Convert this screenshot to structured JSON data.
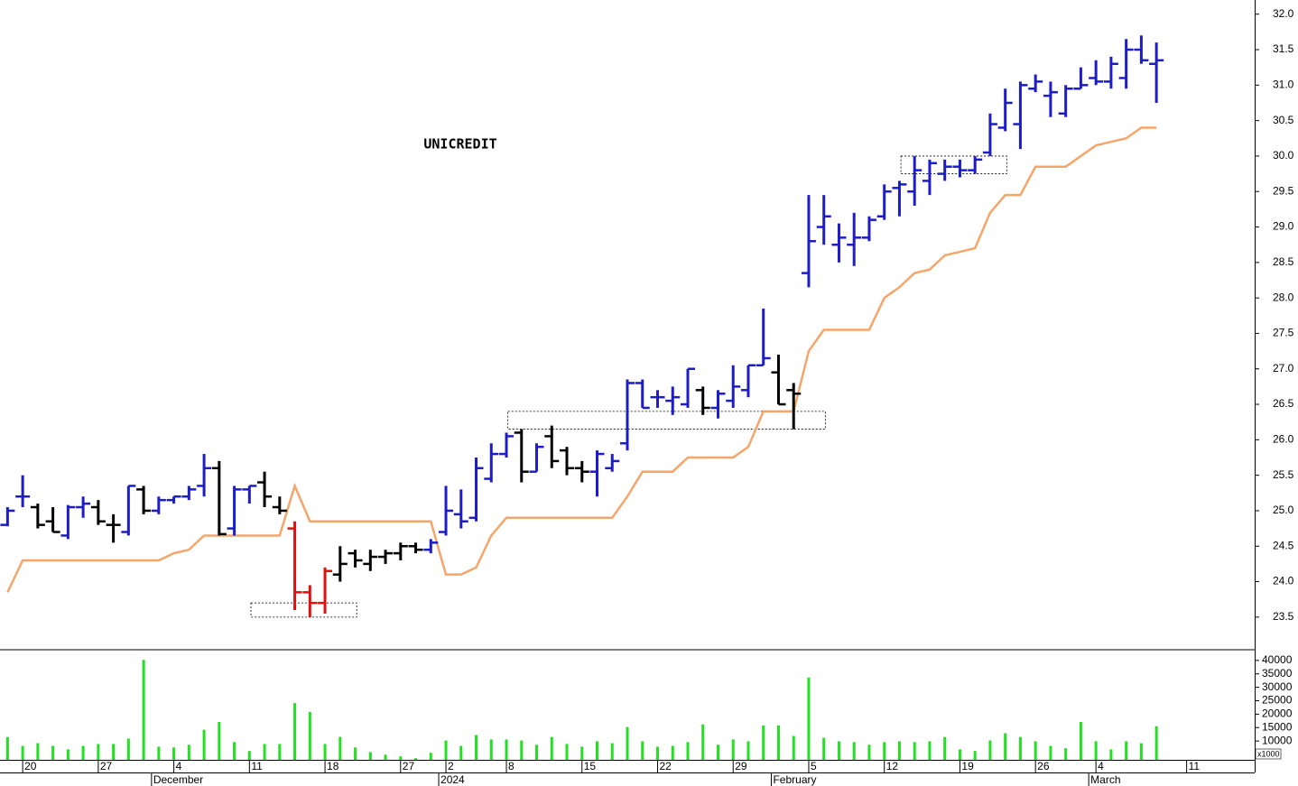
{
  "chart_data": [
    {
      "type": "ohlc",
      "title": "UNICREDIT",
      "xlim": [
        -0.5,
        82.5
      ],
      "ylim": [
        23.04,
        32.2
      ],
      "yticks": [
        23.5,
        {
          "value": 24,
          "label": "24.0"
        },
        24.5,
        {
          "value": 25,
          "label": "25.0"
        },
        25.5,
        {
          "value": 26,
          "label": "26.0"
        },
        26.5,
        {
          "value": 27,
          "label": "27.0"
        },
        27.5,
        {
          "value": 28,
          "label": "28.0"
        },
        28.5,
        {
          "value": 29,
          "label": "29.0"
        },
        29.5,
        {
          "value": 30,
          "label": "30.0"
        },
        30.5,
        {
          "value": 31,
          "label": "31.0"
        },
        31.5,
        {
          "value": 32,
          "label": "32.0"
        }
      ],
      "open": [
        24.8,
        25.2,
        25.05,
        24.85,
        24.65,
        25.05,
        25.05,
        24.8,
        24.7,
        25.3,
        25.0,
        25.15,
        25.2,
        25.35,
        25.6,
        24.75,
        25.3,
        25.4,
        25.05,
        24.75,
        23.85,
        23.7,
        24.1,
        24.4,
        24.25,
        24.35,
        24.4,
        24.5,
        24.45,
        24.7,
        24.95,
        24.9,
        25.45,
        25.8,
        26.1,
        25.55,
        26.05,
        25.85,
        25.6,
        25.55,
        25.6,
        25.95,
        26.8,
        26.6,
        26.55,
        26.5,
        26.7,
        26.45,
        26.55,
        26.7,
        27.05,
        26.95,
        26.7,
        28.35,
        29.0,
        28.75,
        28.75,
        28.85,
        29.15,
        29.55,
        29.5,
        29.65,
        29.75,
        29.85,
        29.8,
        30.05,
        30.4,
        30.45,
        30.95,
        30.85,
        30.6,
        30.95,
        31.1,
        31.05,
        31.1,
        31.5,
        31.3
      ],
      "high": [
        25.05,
        25.5,
        25.1,
        25.05,
        25.08,
        25.2,
        25.15,
        24.95,
        25.35,
        25.35,
        25.2,
        25.2,
        25.35,
        25.8,
        25.7,
        25.35,
        25.35,
        25.55,
        25.2,
        24.85,
        23.95,
        24.2,
        24.5,
        24.45,
        24.45,
        24.45,
        24.55,
        24.55,
        24.6,
        25.35,
        25.3,
        25.75,
        25.95,
        26.1,
        26.15,
        25.95,
        26.2,
        25.9,
        25.7,
        25.85,
        25.8,
        26.85,
        26.85,
        26.7,
        26.75,
        27.0,
        26.75,
        26.7,
        27.05,
        27.05,
        27.85,
        27.2,
        26.8,
        29.45,
        29.45,
        29.05,
        29.2,
        29.15,
        29.6,
        29.65,
        30.0,
        29.95,
        29.95,
        29.95,
        30.0,
        30.6,
        30.95,
        31.05,
        31.15,
        31.05,
        31.0,
        31.25,
        31.35,
        31.4,
        31.65,
        31.7,
        31.6
      ],
      "low": [
        24.78,
        25.05,
        24.75,
        24.7,
        24.6,
        24.9,
        24.8,
        24.55,
        24.65,
        24.95,
        24.95,
        25.1,
        25.15,
        25.2,
        24.65,
        24.65,
        25.1,
        25.05,
        24.95,
        23.6,
        23.5,
        23.55,
        24.0,
        24.2,
        24.15,
        24.25,
        24.3,
        24.4,
        24.4,
        24.65,
        24.75,
        24.85,
        25.4,
        25.75,
        25.4,
        25.55,
        25.6,
        25.5,
        25.4,
        25.2,
        25.55,
        25.85,
        26.45,
        26.45,
        26.35,
        26.45,
        26.35,
        26.3,
        26.45,
        26.6,
        27.05,
        26.5,
        26.15,
        28.15,
        28.75,
        28.5,
        28.45,
        28.8,
        29.1,
        29.15,
        29.3,
        29.45,
        29.65,
        29.7,
        29.75,
        30.0,
        30.35,
        30.1,
        30.9,
        30.55,
        30.55,
        30.95,
        31.0,
        30.95,
        30.95,
        31.3,
        30.75
      ],
      "close": [
        25.0,
        25.2,
        24.8,
        24.7,
        25.05,
        25.1,
        24.85,
        24.8,
        25.35,
        25.0,
        25.15,
        25.2,
        25.3,
        25.6,
        24.67,
        25.3,
        25.35,
        25.2,
        25.0,
        23.85,
        23.7,
        24.15,
        24.25,
        24.3,
        24.35,
        24.4,
        24.5,
        24.45,
        24.55,
        25.0,
        24.85,
        25.6,
        25.8,
        26.05,
        25.55,
        25.9,
        25.7,
        25.6,
        25.55,
        25.8,
        25.7,
        26.8,
        26.45,
        26.6,
        26.6,
        27.0,
        26.45,
        26.65,
        26.75,
        27.05,
        27.15,
        26.5,
        26.65,
        28.8,
        29.15,
        28.85,
        28.85,
        29.1,
        29.5,
        29.6,
        29.8,
        29.9,
        29.85,
        29.8,
        29.95,
        30.45,
        30.75,
        31.0,
        31.05,
        30.9,
        30.95,
        31.0,
        31.05,
        31.3,
        31.5,
        31.35,
        31.35
      ],
      "bar_colors": [
        "#1c1cc8",
        "#1c1cc8",
        "#000000",
        "#000000",
        "#1c1cc8",
        "#1c1cc8",
        "#000000",
        "#000000",
        "#1c1cc8",
        "#000000",
        "#1c1cc8",
        "#1c1cc8",
        "#1c1cc8",
        "#1c1cc8",
        "#000000",
        "#1c1cc8",
        "#1c1cc8",
        "#000000",
        "#000000",
        "#e01010",
        "#e01010",
        "#e01010",
        "#000000",
        "#000000",
        "#000000",
        "#000000",
        "#000000",
        "#000000",
        "#1c1cc8",
        "#1c1cc8",
        "#1c1cc8",
        "#1c1cc8",
        "#1c1cc8",
        "#1c1cc8",
        "#000000",
        "#1c1cc8",
        "#000000",
        "#000000",
        "#000000",
        "#1c1cc8",
        "#1c1cc8",
        "#1c1cc8",
        "#1c1cc8",
        "#1c1cc8",
        "#1c1cc8",
        "#1c1cc8",
        "#000000",
        "#1c1cc8",
        "#1c1cc8",
        "#1c1cc8",
        "#1c1cc8",
        "#000000",
        "#000000",
        "#1c1cc8",
        "#1c1cc8",
        "#1c1cc8",
        "#1c1cc8",
        "#1c1cc8",
        "#1c1cc8",
        "#1c1cc8",
        "#1c1cc8",
        "#1c1cc8",
        "#1c1cc8",
        "#1c1cc8",
        "#1c1cc8",
        "#1c1cc8",
        "#1c1cc8",
        "#1c1cc8",
        "#1c1cc8",
        "#1c1cc8",
        "#1c1cc8",
        "#1c1cc8",
        "#1c1cc8",
        "#1c1cc8",
        "#1c1cc8",
        "#1c1cc8",
        "#1c1cc8"
      ],
      "stop_line": {
        "color": "#f5a56a",
        "values": [
          23.85,
          24.3,
          24.3,
          24.3,
          24.3,
          24.3,
          24.3,
          24.3,
          24.3,
          24.3,
          24.3,
          24.4,
          24.45,
          24.65,
          24.65,
          24.65,
          24.65,
          24.65,
          24.65,
          25.35,
          24.85,
          24.85,
          24.85,
          24.85,
          24.85,
          24.85,
          24.85,
          24.85,
          24.85,
          24.1,
          24.1,
          24.2,
          24.65,
          24.9,
          24.9,
          24.9,
          24.9,
          24.9,
          24.9,
          24.9,
          24.9,
          25.2,
          25.55,
          25.55,
          25.55,
          25.75,
          25.75,
          25.75,
          25.75,
          25.9,
          26.4,
          26.4,
          26.4,
          27.25,
          27.55,
          27.55,
          27.55,
          27.55,
          28.0,
          28.15,
          28.35,
          28.4,
          28.6,
          28.65,
          28.7,
          29.2,
          29.45,
          29.45,
          29.85,
          29.85,
          29.85,
          30.0,
          30.15,
          30.2,
          30.25,
          30.4,
          30.4
        ]
      },
      "boxes": [
        {
          "x": [
            16.1,
            23.1
          ],
          "y": [
            23.5,
            23.7
          ]
        },
        {
          "x": [
            33.1,
            54.1
          ],
          "y": [
            26.15,
            26.4
          ]
        },
        {
          "x": [
            59.1,
            66.1
          ],
          "y": [
            29.75,
            30.0
          ]
        }
      ]
    },
    {
      "type": "bar",
      "color": "#22e022",
      "xlim": [
        -0.5,
        82.5
      ],
      "ylim": [
        3000,
        43300
      ],
      "yticks": [
        10000,
        15000,
        20000,
        25000,
        30000,
        35000,
        40000
      ],
      "unit_label": "x1000",
      "values": [
        11500,
        8200,
        9200,
        8200,
        6900,
        8200,
        8900,
        8900,
        10900,
        40200,
        7900,
        7600,
        8600,
        14200,
        17100,
        9600,
        6300,
        8900,
        8900,
        24100,
        20800,
        8900,
        11500,
        7600,
        5900,
        4900,
        4300,
        3600,
        5600,
        10200,
        8200,
        12200,
        10600,
        10600,
        10200,
        8600,
        11500,
        8900,
        7900,
        9900,
        9200,
        15200,
        9900,
        7900,
        8200,
        9600,
        16200,
        8600,
        10600,
        9900,
        15800,
        15800,
        11900,
        33600,
        11200,
        9900,
        9600,
        8600,
        9600,
        9900,
        9600,
        9900,
        11500,
        6900,
        6300,
        10200,
        12900,
        11500,
        9900,
        8200,
        7300,
        17100,
        9900,
        6900,
        9900,
        9200,
        15500
      ],
      "xticks": [
        {
          "value": 1,
          "label": "20"
        },
        {
          "value": 6,
          "label": "27"
        },
        {
          "value": 11,
          "label": "4"
        },
        {
          "value": 16,
          "label": "11"
        },
        {
          "value": 21,
          "label": "18"
        },
        {
          "value": 26,
          "label": "27"
        },
        {
          "value": 29,
          "label": "2"
        },
        {
          "value": 33,
          "label": "8"
        },
        {
          "value": 38,
          "label": "15"
        },
        {
          "value": 43,
          "label": "22"
        },
        {
          "value": 48,
          "label": "29"
        },
        {
          "value": 53,
          "label": "5"
        },
        {
          "value": 58,
          "label": "12"
        },
        {
          "value": 63,
          "label": "19"
        },
        {
          "value": 68,
          "label": "26"
        },
        {
          "value": 72,
          "label": "4"
        },
        {
          "value": 78,
          "label": "11"
        }
      ],
      "month_ticks": [
        {
          "value": 10,
          "label": "December"
        },
        {
          "value": 29,
          "label": "2024"
        },
        {
          "value": 51,
          "label": "February"
        },
        {
          "value": 72,
          "label": "March"
        }
      ]
    }
  ]
}
